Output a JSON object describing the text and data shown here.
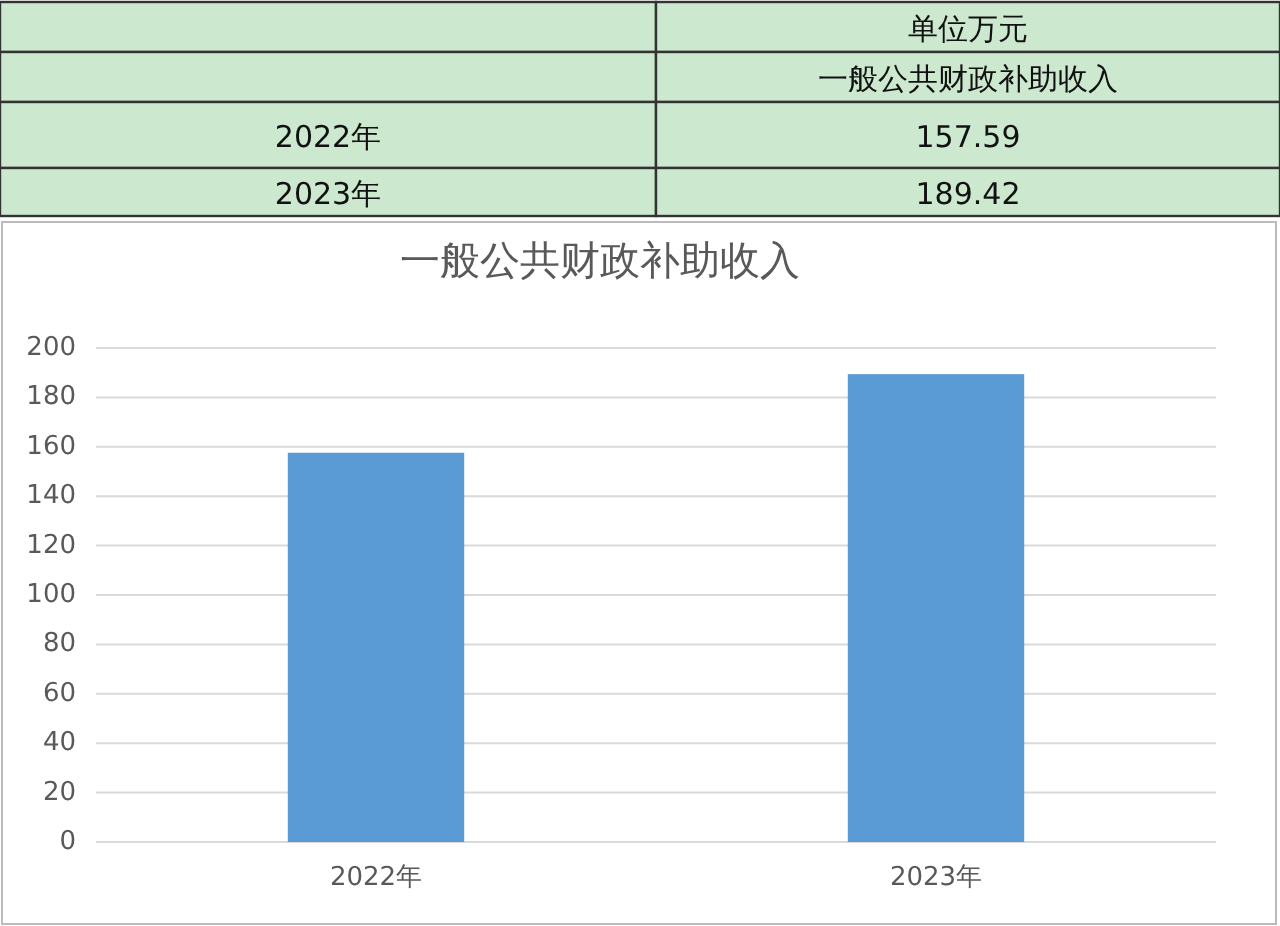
{
  "chart_data": [
    {
      "type": "other",
      "annotations": [
        "单位万元",
        "一般公共财政补助收入"
      ],
      "categories": [
        "2022年",
        "2023年"
      ],
      "values": [
        157.59,
        189.42
      ],
      "data_labels": true
    },
    {
      "type": "bar",
      "title": "一般公共财政补助收入",
      "categories": [
        "2022年",
        "2023年"
      ],
      "values": [
        157.59,
        189.42
      ],
      "color": "#5b9bd5",
      "ylim": [
        0,
        200
      ],
      "yticks": [
        0,
        20,
        40,
        60,
        80,
        100,
        120,
        140,
        160,
        180,
        200
      ],
      "grid": "y"
    }
  ]
}
